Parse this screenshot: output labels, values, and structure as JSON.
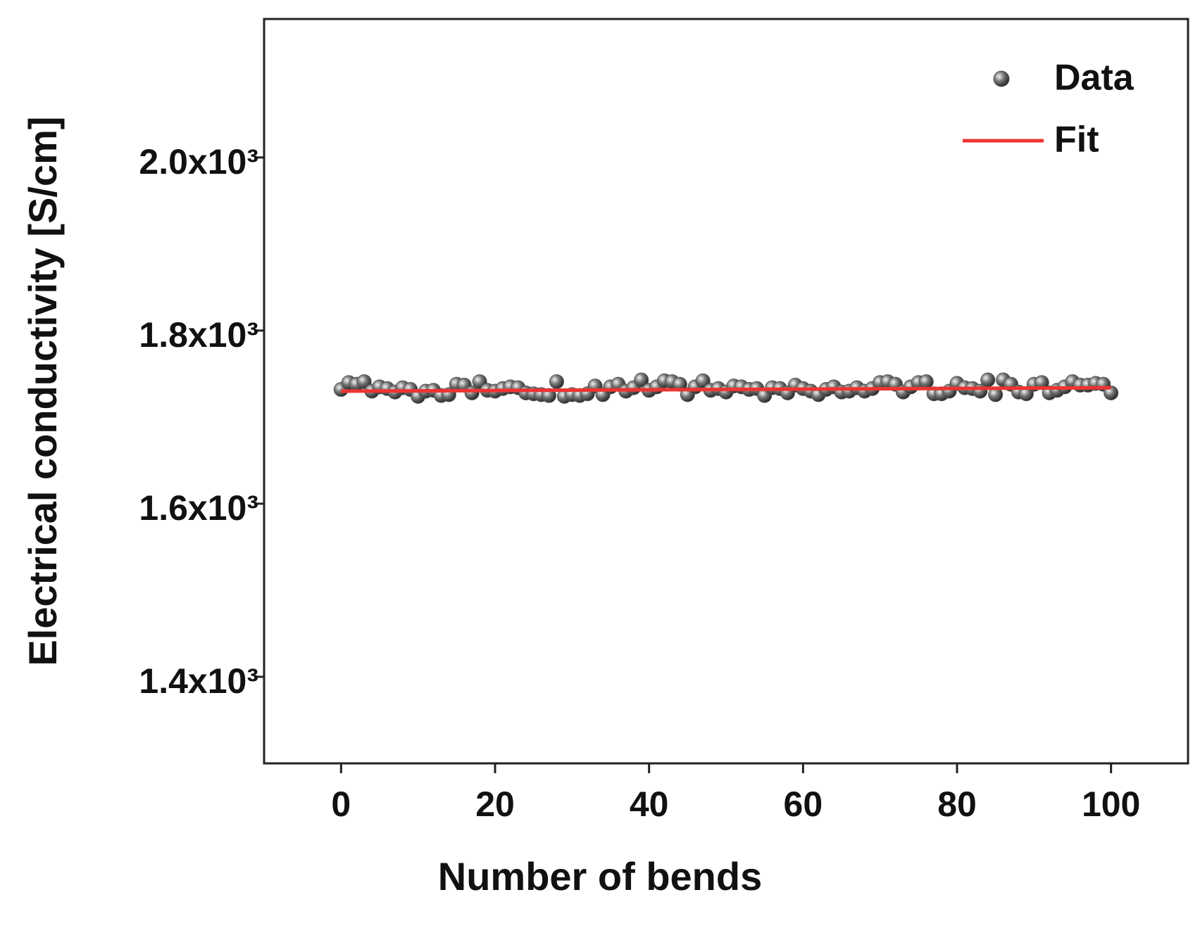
{
  "chart_data": {
    "type": "scatter",
    "xlabel": "Number of bends",
    "ylabel": "Electrical conductivity [S/cm]",
    "xlim": [
      -10,
      110
    ],
    "ylim": [
      1300,
      2160
    ],
    "xticks": [
      0,
      20,
      40,
      60,
      80,
      100
    ],
    "yticks": [
      {
        "value": 1400,
        "label": "1.4x10³"
      },
      {
        "value": 1600,
        "label": "1.6x10³"
      },
      {
        "value": 1800,
        "label": "1.8x10³"
      },
      {
        "value": 2000,
        "label": "2.0x10³"
      }
    ],
    "legend": "upper right",
    "series": [
      {
        "name": "Data",
        "type": "scatter",
        "color": "#555555",
        "x": [
          0,
          1,
          2,
          3,
          4,
          5,
          6,
          7,
          8,
          9,
          10,
          11,
          12,
          13,
          14,
          15,
          16,
          17,
          18,
          19,
          20,
          21,
          22,
          23,
          24,
          25,
          26,
          27,
          28,
          29,
          30,
          31,
          32,
          33,
          34,
          35,
          36,
          37,
          38,
          39,
          40,
          41,
          42,
          43,
          44,
          45,
          46,
          47,
          48,
          49,
          50,
          51,
          52,
          53,
          54,
          55,
          56,
          57,
          58,
          59,
          60,
          61,
          62,
          63,
          64,
          65,
          66,
          67,
          68,
          69,
          70,
          71,
          72,
          73,
          74,
          75,
          76,
          77,
          78,
          79,
          80,
          81,
          82,
          83,
          84,
          85,
          86,
          87,
          88,
          89,
          90,
          91,
          92,
          93,
          94,
          95,
          96,
          97,
          98,
          99,
          100
        ],
        "values": [
          1732,
          1740,
          1738,
          1741,
          1730,
          1735,
          1733,
          1729,
          1734,
          1732,
          1724,
          1730,
          1731,
          1725,
          1726,
          1738,
          1737,
          1728,
          1741,
          1731,
          1730,
          1733,
          1735,
          1734,
          1728,
          1727,
          1726,
          1725,
          1741,
          1724,
          1726,
          1725,
          1727,
          1736,
          1726,
          1735,
          1738,
          1730,
          1734,
          1743,
          1731,
          1735,
          1742,
          1741,
          1738,
          1726,
          1735,
          1742,
          1731,
          1733,
          1729,
          1736,
          1735,
          1732,
          1733,
          1725,
          1734,
          1733,
          1728,
          1737,
          1733,
          1730,
          1726,
          1732,
          1735,
          1729,
          1730,
          1734,
          1730,
          1733,
          1740,
          1741,
          1738,
          1729,
          1735,
          1740,
          1741,
          1727,
          1727,
          1730,
          1739,
          1734,
          1733,
          1730,
          1743,
          1726,
          1743,
          1738,
          1729,
          1727,
          1738,
          1740,
          1728,
          1731,
          1735,
          1741,
          1737,
          1737,
          1739,
          1738,
          1728
        ]
      },
      {
        "name": "Fit",
        "type": "line",
        "color": "#ee3333",
        "x": [
          0,
          100
        ],
        "values": [
          1730,
          1734
        ]
      }
    ]
  }
}
